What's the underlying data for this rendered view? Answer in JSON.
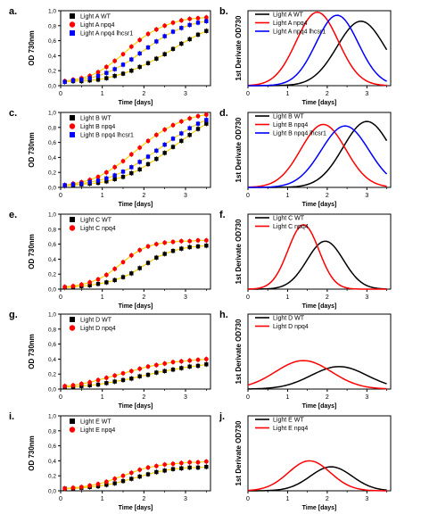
{
  "chart_data": [
    {
      "panel": "a.",
      "type": "scatter",
      "xlabel": "Time [days]",
      "ylabel": "OD 730nm",
      "xlim": [
        0,
        3.6
      ],
      "ylim": [
        0,
        1.0
      ],
      "xticks": [
        "0",
        "1",
        "2",
        "3"
      ],
      "yticks": [
        "0,0",
        "0,2",
        "0,4",
        "0,6",
        "0,8",
        "1,0"
      ],
      "series": [
        {
          "name": "Light A WT",
          "marker": "square",
          "color": "#000000",
          "x": [
            0.1,
            0.3,
            0.5,
            0.7,
            0.9,
            1.1,
            1.3,
            1.5,
            1.7,
            1.9,
            2.1,
            2.3,
            2.5,
            2.7,
            2.9,
            3.1,
            3.3,
            3.5
          ],
          "y": [
            0.05,
            0.06,
            0.06,
            0.07,
            0.08,
            0.1,
            0.13,
            0.16,
            0.2,
            0.25,
            0.3,
            0.36,
            0.42,
            0.49,
            0.56,
            0.62,
            0.68,
            0.73
          ]
        },
        {
          "name": "Light A npq4",
          "marker": "circle",
          "color": "#ff0000",
          "x": [
            0.1,
            0.3,
            0.5,
            0.7,
            0.9,
            1.1,
            1.3,
            1.5,
            1.7,
            1.9,
            2.1,
            2.3,
            2.5,
            2.7,
            2.9,
            3.1,
            3.3,
            3.5
          ],
          "y": [
            0.06,
            0.08,
            0.1,
            0.13,
            0.18,
            0.25,
            0.33,
            0.42,
            0.52,
            0.61,
            0.69,
            0.75,
            0.8,
            0.84,
            0.87,
            0.89,
            0.9,
            0.91
          ]
        },
        {
          "name": "Light A npq4 lhcsr1",
          "marker": "square",
          "color": "#0000ff",
          "x": [
            0.1,
            0.3,
            0.5,
            0.7,
            0.9,
            1.1,
            1.3,
            1.5,
            1.7,
            1.9,
            2.1,
            2.3,
            2.5,
            2.7,
            2.9,
            3.1,
            3.3,
            3.5
          ],
          "y": [
            0.05,
            0.07,
            0.08,
            0.1,
            0.13,
            0.17,
            0.22,
            0.28,
            0.35,
            0.43,
            0.51,
            0.59,
            0.66,
            0.72,
            0.77,
            0.81,
            0.84,
            0.86
          ]
        }
      ]
    },
    {
      "panel": "b.",
      "type": "line",
      "xlabel": "Time [days]",
      "ylabel": "1st Derivate OD730",
      "xlim": [
        0,
        3.6
      ],
      "ylim": [
        0,
        0.5
      ],
      "xticks": [
        "0",
        "1",
        "2",
        "3"
      ],
      "series": [
        {
          "name": "Light A WT",
          "color": "#000000",
          "peak_x": 2.85,
          "peak_y": 0.43,
          "width": 0.85
        },
        {
          "name": "Light A npq4",
          "color": "#ff0000",
          "peak_x": 1.75,
          "peak_y": 0.49,
          "width": 0.75
        },
        {
          "name": "Light A npq4 lhcsr1",
          "color": "#0000ff",
          "peak_x": 2.25,
          "peak_y": 0.47,
          "width": 0.75
        }
      ]
    },
    {
      "panel": "c.",
      "type": "scatter",
      "xlabel": "Time [days]",
      "ylabel": "OD 730nm",
      "xlim": [
        0,
        3.6
      ],
      "ylim": [
        0,
        1.0
      ],
      "xticks": [
        "0",
        "1",
        "2",
        "3"
      ],
      "yticks": [
        "0,0",
        "0,2",
        "0,4",
        "0,6",
        "0,8",
        "1,0"
      ],
      "series": [
        {
          "name": "Light B WT",
          "marker": "square",
          "color": "#000000",
          "x": [
            0.1,
            0.3,
            0.5,
            0.7,
            0.9,
            1.1,
            1.3,
            1.5,
            1.7,
            1.9,
            2.1,
            2.3,
            2.5,
            2.7,
            2.9,
            3.1,
            3.3,
            3.5
          ],
          "y": [
            0.02,
            0.03,
            0.04,
            0.05,
            0.06,
            0.08,
            0.11,
            0.14,
            0.19,
            0.24,
            0.31,
            0.38,
            0.46,
            0.54,
            0.62,
            0.7,
            0.78,
            0.85
          ]
        },
        {
          "name": "Light B npq4",
          "marker": "circle",
          "color": "#ff0000",
          "x": [
            0.1,
            0.3,
            0.5,
            0.7,
            0.9,
            1.1,
            1.3,
            1.5,
            1.7,
            1.9,
            2.1,
            2.3,
            2.5,
            2.7,
            2.9,
            3.1,
            3.3,
            3.5
          ],
          "y": [
            0.03,
            0.05,
            0.07,
            0.1,
            0.14,
            0.2,
            0.27,
            0.35,
            0.44,
            0.53,
            0.62,
            0.7,
            0.77,
            0.83,
            0.88,
            0.92,
            0.95,
            0.97
          ]
        },
        {
          "name": "Light B npq4 lhcsr1",
          "marker": "square",
          "color": "#0000ff",
          "x": [
            0.1,
            0.3,
            0.5,
            0.7,
            0.9,
            1.1,
            1.3,
            1.5,
            1.7,
            1.9,
            2.1,
            2.3,
            2.5,
            2.7,
            2.9,
            3.1,
            3.3,
            3.5
          ],
          "y": [
            0.03,
            0.04,
            0.05,
            0.07,
            0.09,
            0.12,
            0.16,
            0.21,
            0.27,
            0.34,
            0.41,
            0.49,
            0.57,
            0.65,
            0.72,
            0.79,
            0.85,
            0.9
          ]
        }
      ]
    },
    {
      "panel": "d.",
      "type": "line",
      "xlabel": "Time [days]",
      "ylabel": "1st Derivate OD730",
      "xlim": [
        0,
        3.6
      ],
      "ylim": [
        0,
        0.5
      ],
      "xticks": [
        "0",
        "1",
        "2",
        "3"
      ],
      "series": [
        {
          "name": "Light B WT",
          "color": "#000000",
          "peak_x": 3.0,
          "peak_y": 0.44,
          "width": 0.85
        },
        {
          "name": "Light B npq4",
          "color": "#ff0000",
          "peak_x": 1.9,
          "peak_y": 0.42,
          "width": 0.8
        },
        {
          "name": "Light B npq4 lhcsr1",
          "color": "#0000ff",
          "peak_x": 2.45,
          "peak_y": 0.41,
          "width": 0.85
        }
      ]
    },
    {
      "panel": "e.",
      "type": "scatter",
      "xlabel": "Time [days]",
      "ylabel": "OD 730nm",
      "xlim": [
        0,
        3.6
      ],
      "ylim": [
        0,
        1.0
      ],
      "xticks": [
        "0",
        "1",
        "2",
        "3"
      ],
      "yticks": [
        "0,0",
        "0,2",
        "0,4",
        "0,6",
        "0,8",
        "1,0"
      ],
      "series": [
        {
          "name": "Light C WT",
          "marker": "square",
          "color": "#000000",
          "x": [
            0.1,
            0.3,
            0.5,
            0.7,
            0.9,
            1.1,
            1.3,
            1.5,
            1.7,
            1.9,
            2.1,
            2.3,
            2.5,
            2.7,
            2.9,
            3.1,
            3.3,
            3.5
          ],
          "y": [
            0.02,
            0.03,
            0.04,
            0.05,
            0.07,
            0.09,
            0.12,
            0.16,
            0.21,
            0.28,
            0.35,
            0.42,
            0.47,
            0.51,
            0.54,
            0.56,
            0.57,
            0.58
          ]
        },
        {
          "name": "Light C npq4",
          "marker": "circle",
          "color": "#ff0000",
          "x": [
            0.1,
            0.3,
            0.5,
            0.7,
            0.9,
            1.1,
            1.3,
            1.5,
            1.7,
            1.9,
            2.1,
            2.3,
            2.5,
            2.7,
            2.9,
            3.1,
            3.3,
            3.5
          ],
          "y": [
            0.03,
            0.04,
            0.06,
            0.09,
            0.13,
            0.19,
            0.27,
            0.36,
            0.45,
            0.52,
            0.57,
            0.6,
            0.62,
            0.63,
            0.64,
            0.64,
            0.65,
            0.65
          ]
        }
      ]
    },
    {
      "panel": "f.",
      "type": "line",
      "xlabel": "Time [days]",
      "ylabel": "1st Derivate OD730",
      "xlim": [
        0,
        3.6
      ],
      "ylim": [
        0,
        0.5
      ],
      "xticks": [
        "0",
        "1",
        "2",
        "3"
      ],
      "series": [
        {
          "name": "Light C WT",
          "color": "#000000",
          "peak_x": 1.95,
          "peak_y": 0.32,
          "width": 0.65
        },
        {
          "name": "Light C npq4",
          "color": "#ff0000",
          "peak_x": 1.4,
          "peak_y": 0.43,
          "width": 0.55
        }
      ]
    },
    {
      "panel": "g.",
      "type": "scatter",
      "xlabel": "Time [days]",
      "ylabel": "OD 730nm",
      "xlim": [
        0,
        3.6
      ],
      "ylim": [
        0,
        1.0
      ],
      "xticks": [
        "0",
        "1",
        "2",
        "3"
      ],
      "yticks": [
        "0,0",
        "0,2",
        "0,4",
        "0,6",
        "0,8",
        "1,0"
      ],
      "series": [
        {
          "name": "Light D WT",
          "marker": "square",
          "color": "#000000",
          "x": [
            0.1,
            0.3,
            0.5,
            0.7,
            0.9,
            1.1,
            1.3,
            1.5,
            1.7,
            1.9,
            2.1,
            2.3,
            2.5,
            2.7,
            2.9,
            3.1,
            3.3,
            3.5
          ],
          "y": [
            0.03,
            0.03,
            0.04,
            0.05,
            0.06,
            0.08,
            0.1,
            0.12,
            0.14,
            0.17,
            0.19,
            0.22,
            0.24,
            0.26,
            0.28,
            0.3,
            0.31,
            0.33
          ]
        },
        {
          "name": "Light D npq4",
          "marker": "circle",
          "color": "#ff0000",
          "x": [
            0.1,
            0.3,
            0.5,
            0.7,
            0.9,
            1.1,
            1.3,
            1.5,
            1.7,
            1.9,
            2.1,
            2.3,
            2.5,
            2.7,
            2.9,
            3.1,
            3.3,
            3.5
          ],
          "y": [
            0.04,
            0.05,
            0.07,
            0.09,
            0.12,
            0.15,
            0.18,
            0.21,
            0.24,
            0.27,
            0.3,
            0.32,
            0.34,
            0.36,
            0.37,
            0.38,
            0.39,
            0.4
          ]
        }
      ]
    },
    {
      "panel": "h.",
      "type": "line",
      "xlabel": "Time [days]",
      "ylabel": "1st Derivate OD730",
      "xlim": [
        0,
        3.6
      ],
      "ylim": [
        0,
        0.5
      ],
      "xticks": [
        "0",
        "1",
        "2",
        "3"
      ],
      "series": [
        {
          "name": "Light D WT",
          "color": "#000000",
          "peak_x": 2.3,
          "peak_y": 0.15,
          "width": 1.0
        },
        {
          "name": "Light D npq4",
          "color": "#ff0000",
          "peak_x": 1.4,
          "peak_y": 0.19,
          "width": 1.0
        }
      ]
    },
    {
      "panel": "i.",
      "type": "scatter",
      "xlabel": "Time [days]",
      "ylabel": "OD 730nm",
      "xlim": [
        0,
        3.6
      ],
      "ylim": [
        0,
        1.0
      ],
      "xticks": [
        "0",
        "1",
        "2",
        "3"
      ],
      "yticks": [
        "0,0",
        "0,2",
        "0,4",
        "0,6",
        "0,8",
        "1,0"
      ],
      "series": [
        {
          "name": "Light E WT",
          "marker": "square",
          "color": "#000000",
          "x": [
            0.1,
            0.3,
            0.5,
            0.7,
            0.9,
            1.1,
            1.3,
            1.5,
            1.7,
            1.9,
            2.1,
            2.3,
            2.5,
            2.7,
            2.9,
            3.1,
            3.3,
            3.5
          ],
          "y": [
            0.03,
            0.03,
            0.04,
            0.05,
            0.06,
            0.08,
            0.1,
            0.13,
            0.16,
            0.19,
            0.22,
            0.25,
            0.27,
            0.29,
            0.3,
            0.31,
            0.31,
            0.32
          ]
        },
        {
          "name": "Light E npq4",
          "marker": "circle",
          "color": "#ff0000",
          "x": [
            0.1,
            0.3,
            0.5,
            0.7,
            0.9,
            1.1,
            1.3,
            1.5,
            1.7,
            1.9,
            2.1,
            2.3,
            2.5,
            2.7,
            2.9,
            3.1,
            3.3,
            3.5
          ],
          "y": [
            0.03,
            0.04,
            0.05,
            0.07,
            0.09,
            0.12,
            0.16,
            0.2,
            0.24,
            0.28,
            0.31,
            0.33,
            0.35,
            0.36,
            0.37,
            0.38,
            0.38,
            0.39
          ]
        }
      ]
    },
    {
      "panel": "j.",
      "type": "line",
      "xlabel": "Time [days]",
      "ylabel": "1st Derivate OD730",
      "xlim": [
        0,
        3.6
      ],
      "ylim": [
        0,
        0.5
      ],
      "xticks": [
        "0",
        "1",
        "2",
        "3"
      ],
      "series": [
        {
          "name": "Light E WT",
          "color": "#000000",
          "peak_x": 2.1,
          "peak_y": 0.16,
          "width": 0.75
        },
        {
          "name": "Light E npq4",
          "color": "#ff0000",
          "peak_x": 1.55,
          "peak_y": 0.2,
          "width": 0.75
        }
      ]
    }
  ]
}
